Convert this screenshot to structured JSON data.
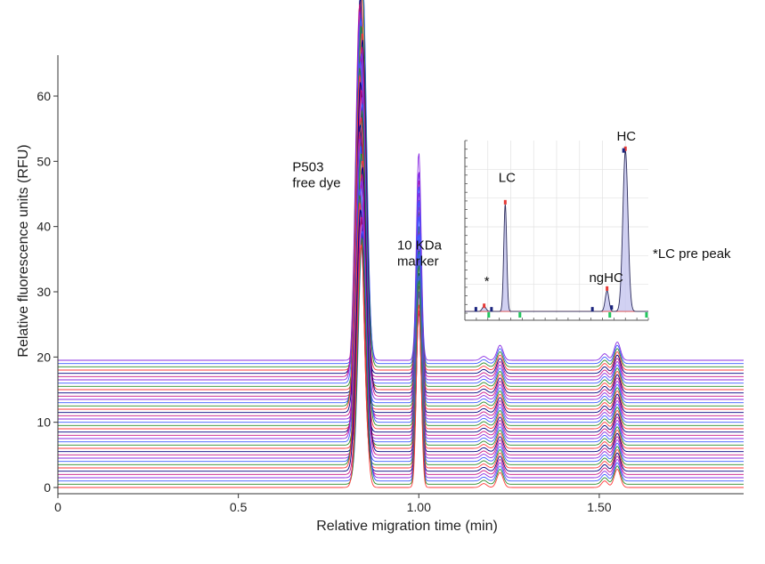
{
  "chart_data": {
    "type": "line",
    "subtype": "stacked electropherogram overlay",
    "xlabel": "Relative migration time (min)",
    "ylabel": "Relative fluorescence units (RFU)",
    "xlim": [
      0,
      1.9
    ],
    "ylim": [
      -1,
      66
    ],
    "x_ticks": [
      {
        "value": 0,
        "label": "0"
      },
      {
        "value": 0.5,
        "label": "0.5"
      },
      {
        "value": 1.0,
        "label": "1.00"
      },
      {
        "value": 1.5,
        "label": "1.50"
      }
    ],
    "y_ticks": [
      0,
      10,
      20,
      30,
      40,
      50,
      60
    ],
    "grid": false,
    "trace_count": 40,
    "trace_offset_step": 0.5,
    "trace_colors": [
      "#ff3a3a",
      "#2b8a2b",
      "#3b5bff",
      "#8a2be2",
      "#c71585",
      "#000080"
    ],
    "peaks": [
      {
        "x": 0.84,
        "height": 60
      },
      {
        "x": 1.0,
        "height": 32
      },
      {
        "x": 1.18,
        "height": 0.6
      },
      {
        "x": 1.225,
        "height": 2.3
      },
      {
        "x": 1.515,
        "height": 1.0
      },
      {
        "x": 1.55,
        "height": 2.8
      }
    ],
    "annotations": [
      {
        "text": "P503",
        "x": 0.65,
        "y": 48.5
      },
      {
        "text": "free dye",
        "x": 0.65,
        "y": 46.0
      },
      {
        "text": "10 KDa",
        "x": 0.94,
        "y": 36.5
      },
      {
        "text": "marker",
        "x": 0.94,
        "y": 34.0
      }
    ],
    "inset": {
      "type": "line",
      "peak_labels": [
        {
          "text": "*",
          "x": 0.12,
          "y": 0.16
        },
        {
          "text": "LC",
          "x": 0.23,
          "y": 0.76
        },
        {
          "text": "ngHC",
          "x": 0.77,
          "y": 0.18
        },
        {
          "text": "HC",
          "x": 0.88,
          "y": 1.0
        }
      ],
      "peaks": [
        {
          "x": 0.105,
          "height": 0.03
        },
        {
          "x": 0.22,
          "height": 0.62
        },
        {
          "x": 0.775,
          "height": 0.12
        },
        {
          "x": 0.875,
          "height": 0.93
        }
      ],
      "peak_markers": [
        {
          "x": 0.06,
          "y": 0.02,
          "color": "#1a237e"
        },
        {
          "x": 0.105,
          "y": 0.04,
          "color": "#e53935"
        },
        {
          "x": 0.145,
          "y": 0.02,
          "color": "#1a237e"
        },
        {
          "x": 0.22,
          "y": 0.64,
          "color": "#e53935"
        },
        {
          "x": 0.695,
          "y": 0.02,
          "color": "#1a237e"
        },
        {
          "x": 0.775,
          "y": 0.14,
          "color": "#e53935"
        },
        {
          "x": 0.8,
          "y": 0.03,
          "color": "#1a237e"
        },
        {
          "x": 0.875,
          "y": 0.95,
          "color": "#e53935"
        },
        {
          "x": 0.865,
          "y": 0.94,
          "color": "#1a237e"
        }
      ],
      "baseline_markers": [
        0.13,
        0.3,
        0.79,
        0.99
      ],
      "fill_color": "#c9c9f0",
      "line_color": "#2b2b5a"
    },
    "side_note": "*LC pre peak"
  }
}
